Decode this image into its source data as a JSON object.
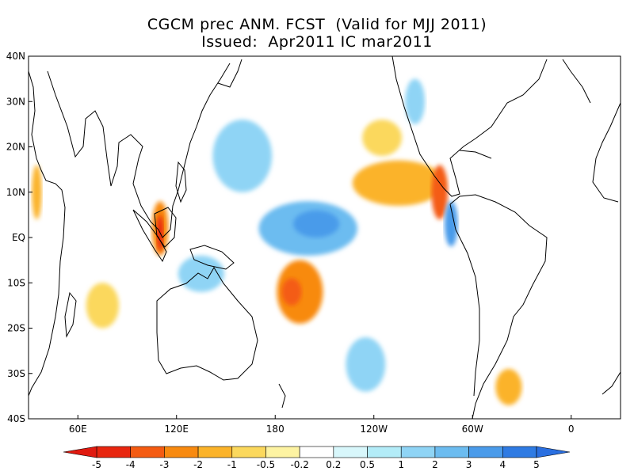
{
  "title": {
    "line1": "CGCM prec ANM. FCST  (Valid for MJJ 2011)",
    "line2": "Issued:  Apr2011 IC mar2011"
  },
  "map": {
    "lat_labels": [
      "40N",
      "30N",
      "20N",
      "10N",
      "EQ",
      "10S",
      "20S",
      "30S",
      "40S"
    ],
    "lon_labels": [
      "60E",
      "120E",
      "180",
      "120W",
      "60W",
      "0"
    ]
  },
  "colorbar": {
    "levels": [
      "-5",
      "-4",
      "-3",
      "-2",
      "-1",
      "-0.5",
      "-0.2",
      "0.2",
      "0.5",
      "1",
      "2",
      "3",
      "4",
      "5"
    ],
    "colors": [
      "#e8260f",
      "#f45b12",
      "#f88a10",
      "#fbb32a",
      "#fbd85d",
      "#fdf3a2",
      "#ffffff",
      "#d8f7fb",
      "#b3ecf8",
      "#8fd4f5",
      "#6cbcf0",
      "#4a9bea",
      "#2f7be3"
    ],
    "end_low": "#e01a10",
    "end_high": "#2a6fe0"
  },
  "anomaly_blobs": [
    {
      "name": "east-pacific-north-positive",
      "lon": 255,
      "lat": 12,
      "rx": 28,
      "ry": 5,
      "level": 3
    },
    {
      "name": "south-pacific-positive",
      "lon": 195,
      "lat": -12,
      "rx": 14,
      "ry": 7,
      "level": 2
    },
    {
      "name": "south-pacific-positive-core",
      "lon": 190,
      "lat": -12,
      "rx": 6,
      "ry": 3,
      "level": 1
    },
    {
      "name": "equatorial-pacific-negative",
      "lon": 200,
      "lat": 2,
      "rx": 30,
      "ry": 6,
      "level": 10
    },
    {
      "name": "equatorial-pacific-negative-core",
      "lon": 205,
      "lat": 3,
      "rx": 14,
      "ry": 3,
      "level": 11
    },
    {
      "name": "western-pacific-negative",
      "lon": 160,
      "lat": 18,
      "rx": 18,
      "ry": 8,
      "level": 9
    },
    {
      "name": "borneo-positive",
      "lon": 110,
      "lat": 2,
      "rx": 5,
      "ry": 6,
      "level": 2
    },
    {
      "name": "borneo-positive-core",
      "lon": 110,
      "lat": 1,
      "rx": 2,
      "ry": 4,
      "level": 0
    },
    {
      "name": "central-america-positive",
      "lon": 280,
      "lat": 10,
      "rx": 5,
      "ry": 6,
      "level": 1
    },
    {
      "name": "caribbean-negative",
      "lon": 287,
      "lat": 3,
      "rx": 4,
      "ry": 5,
      "level": 11
    },
    {
      "name": "south-atlantic-positive",
      "lon": 322,
      "lat": -33,
      "rx": 8,
      "ry": 4,
      "level": 3
    },
    {
      "name": "indian-ocean-positive",
      "lon": 75,
      "lat": -15,
      "rx": 10,
      "ry": 5,
      "level": 4
    },
    {
      "name": "africa-west-positive",
      "lon": 35,
      "lat": 10,
      "rx": 3,
      "ry": 6,
      "level": 3
    },
    {
      "name": "north-pacific-positive",
      "lon": 245,
      "lat": 22,
      "rx": 12,
      "ry": 4,
      "level": 4
    },
    {
      "name": "south-pacific-negative",
      "lon": 235,
      "lat": -28,
      "rx": 12,
      "ry": 6,
      "level": 9
    },
    {
      "name": "indonesia-negative",
      "lon": 135,
      "lat": -8,
      "rx": 14,
      "ry": 4,
      "level": 9
    },
    {
      "name": "north-atlantic-negative",
      "lon": 265,
      "lat": 30,
      "rx": 6,
      "ry": 5,
      "level": 9
    }
  ]
}
